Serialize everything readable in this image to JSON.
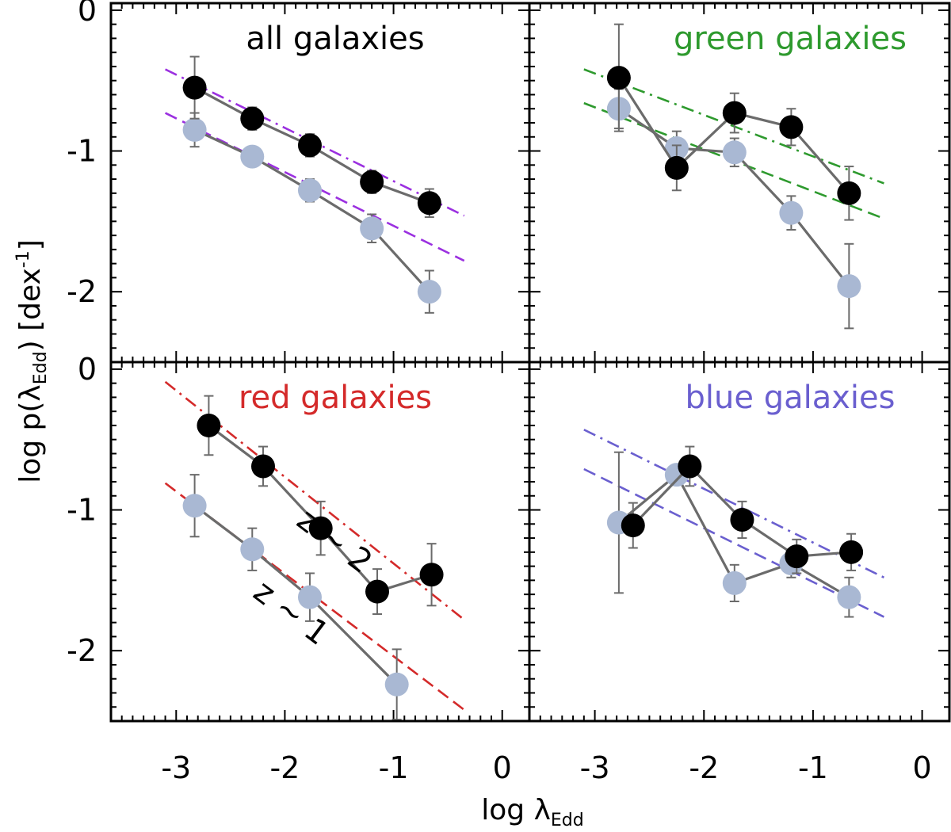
{
  "figure": {
    "ylabel": "log p(λ",
    "ylabel_sub": "Edd",
    "ylabel_tail": ") [dex",
    "ylabel_sup": "-1",
    "ylabel_end": "]",
    "xlabel": "log λ",
    "xlabel_sub": "Edd"
  },
  "chart_data": [
    {
      "type": "line",
      "title": "all galaxies",
      "title_color": "#000000",
      "fit_color": "#9b30e0",
      "xlim": [
        -3.6,
        0.25
      ],
      "ylim": [
        -2.5,
        0.05
      ],
      "xticks": [
        -3,
        -2,
        -1,
        0
      ],
      "yticks": [
        0,
        -1,
        -2
      ],
      "series": [
        {
          "name": "z ~ 2",
          "marker": "#000000",
          "x": [
            -2.83,
            -2.3,
            -1.77,
            -1.2,
            -0.67
          ],
          "y": [
            -0.55,
            -0.77,
            -0.96,
            -1.22,
            -1.37
          ],
          "err": [
            0.22,
            0.08,
            0.08,
            0.08,
            0.1
          ]
        },
        {
          "name": "z ~ 1",
          "marker": "#a9b8d3",
          "x": [
            -2.83,
            -2.3,
            -1.77,
            -1.2,
            -0.67
          ],
          "y": [
            -0.85,
            -1.04,
            -1.28,
            -1.55,
            -2.0
          ],
          "err": [
            0.12,
            0.07,
            0.08,
            0.1,
            0.15
          ]
        }
      ],
      "fits": [
        {
          "style": "dashdot",
          "x": [
            -3.1,
            -0.35
          ],
          "y": [
            -0.42,
            -1.46
          ]
        },
        {
          "style": "dashed",
          "x": [
            -3.1,
            -0.35
          ],
          "y": [
            -0.73,
            -1.78
          ]
        }
      ],
      "annotations": []
    },
    {
      "type": "line",
      "title": "green galaxies",
      "title_color": "#2e9a2e",
      "fit_color": "#2e9a2e",
      "xlim": [
        -3.6,
        0.25
      ],
      "ylim": [
        -2.5,
        0.05
      ],
      "xticks": [
        -3,
        -2,
        -1,
        0
      ],
      "yticks": [
        0,
        -1,
        -2
      ],
      "series": [
        {
          "name": "z ~ 2",
          "marker": "#000000",
          "x": [
            -2.78,
            -2.25,
            -1.72,
            -1.2,
            -0.67
          ],
          "y": [
            -0.48,
            -1.12,
            -0.73,
            -0.83,
            -1.3
          ],
          "err": [
            0.38,
            0.16,
            0.14,
            0.13,
            0.19
          ]
        },
        {
          "name": "z ~ 1",
          "marker": "#a9b8d3",
          "x": [
            -2.78,
            -2.25,
            -1.72,
            -1.2,
            -0.67
          ],
          "y": [
            -0.7,
            -0.98,
            -1.01,
            -1.44,
            -1.96
          ],
          "err": [
            0.14,
            0.12,
            0.1,
            0.12,
            0.3
          ]
        }
      ],
      "fits": [
        {
          "style": "dashdot",
          "x": [
            -3.1,
            -0.35
          ],
          "y": [
            -0.42,
            -1.23
          ]
        },
        {
          "style": "dashed",
          "x": [
            -3.1,
            -0.35
          ],
          "y": [
            -0.66,
            -1.48
          ]
        }
      ],
      "annotations": []
    },
    {
      "type": "line",
      "title": "red galaxies",
      "title_color": "#d42a2a",
      "fit_color": "#d42a2a",
      "xlim": [
        -3.6,
        0.25
      ],
      "ylim": [
        -2.5,
        0.05
      ],
      "xticks": [
        -3,
        -2,
        -1,
        0
      ],
      "yticks": [
        0,
        -1,
        -2
      ],
      "series": [
        {
          "name": "z ~ 2",
          "marker": "#000000",
          "x": [
            -2.7,
            -2.2,
            -1.67,
            -1.15,
            -0.65
          ],
          "y": [
            -0.4,
            -0.69,
            -1.13,
            -1.58,
            -1.46
          ],
          "err": [
            0.21,
            0.14,
            0.19,
            0.16,
            0.22
          ]
        },
        {
          "name": "z ~ 1",
          "marker": "#a9b8d3",
          "x": [
            -2.83,
            -2.3,
            -1.77,
            -0.97
          ],
          "y": [
            -0.97,
            -1.28,
            -1.62,
            -2.24
          ],
          "err": [
            0.22,
            0.15,
            0.17,
            0.25
          ]
        }
      ],
      "fits": [
        {
          "style": "dashdot",
          "x": [
            -3.1,
            -0.35
          ],
          "y": [
            -0.09,
            -1.78
          ]
        },
        {
          "style": "dashed",
          "x": [
            -3.1,
            -0.35
          ],
          "y": [
            -0.81,
            -2.42
          ]
        }
      ],
      "annotations": [
        {
          "text": "z ~ 2",
          "x": -1.6,
          "y": -1.28,
          "rotation": 37
        },
        {
          "text": "z ~ 1",
          "x": -2.0,
          "y": -1.79,
          "rotation": 37
        }
      ]
    },
    {
      "type": "line",
      "title": "blue galaxies",
      "title_color": "#6a5fcf",
      "fit_color": "#6a5fcf",
      "xlim": [
        -3.6,
        0.25
      ],
      "ylim": [
        -2.5,
        0.05
      ],
      "xticks": [
        -3,
        -2,
        -1,
        0
      ],
      "yticks": [
        0,
        -1,
        -2
      ],
      "series": [
        {
          "name": "z ~ 2",
          "marker": "#000000",
          "x": [
            -2.65,
            -2.13,
            -1.65,
            -1.15,
            -0.65
          ],
          "y": [
            -1.11,
            -0.69,
            -1.07,
            -1.33,
            -1.3
          ],
          "err": [
            0.16,
            0.14,
            0.13,
            0.12,
            0.13
          ]
        },
        {
          "name": "z ~ 1",
          "marker": "#a9b8d3",
          "x": [
            -2.78,
            -2.25,
            -1.72,
            -1.2,
            -0.67
          ],
          "y": [
            -1.09,
            -0.75,
            -1.52,
            -1.38,
            -1.62
          ],
          "err": [
            0.5,
            0.05,
            0.13,
            0.1,
            0.14
          ]
        }
      ],
      "fits": [
        {
          "style": "dashdot",
          "x": [
            -3.1,
            -0.35
          ],
          "y": [
            -0.43,
            -1.48
          ]
        },
        {
          "style": "dashed",
          "x": [
            -3.1,
            -0.35
          ],
          "y": [
            -0.71,
            -1.76
          ]
        }
      ],
      "annotations": []
    }
  ]
}
